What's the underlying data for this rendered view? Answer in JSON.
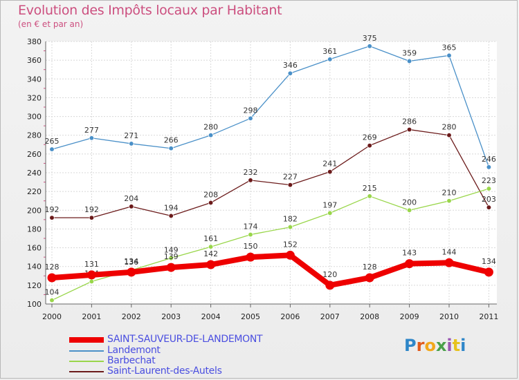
{
  "title": "Evolution des Impôts locaux par Habitant",
  "subtitle": "(en € et par an)",
  "brand": {
    "text": "Proxiti",
    "letter_colors": [
      "#2e86c8",
      "#e05a1c",
      "#f2a71b",
      "#4aa04a",
      "#9b57b2",
      "#e7c21e",
      "#2e86c8"
    ]
  },
  "chart_data": {
    "type": "line",
    "title": "Evolution des Impôts locaux par Habitant",
    "subtitle": "(en € et par an)",
    "x": [
      "2000",
      "2001",
      "2002",
      "2003",
      "2004",
      "2005",
      "2006",
      "2007",
      "2008",
      "2009",
      "2010",
      "2011"
    ],
    "ylim": [
      100,
      380
    ],
    "yticks": [
      "100",
      "120",
      "140",
      "160",
      "180",
      "200",
      "220",
      "240",
      "260",
      "280",
      "300",
      "320",
      "340",
      "360",
      "380"
    ],
    "grid": true,
    "legend_position": "bottom-left",
    "series": [
      {
        "name": "Landemont",
        "color": "#4a90c8",
        "values": [
          265,
          277,
          271,
          266,
          280,
          298,
          346,
          361,
          375,
          359,
          365,
          246
        ],
        "labels": [
          "265",
          "277",
          "271",
          "266",
          "280",
          "298",
          "346",
          "361",
          "375",
          "359",
          "365",
          "246"
        ]
      },
      {
        "name": "Saint-Laurent-des-Autels",
        "color": "#6b1a1a",
        "values": [
          192,
          192,
          204,
          194,
          208,
          232,
          227,
          241,
          269,
          286,
          280,
          203
        ],
        "labels": [
          "192",
          "192",
          "204",
          "194",
          "208",
          "232",
          "227",
          "241",
          "269",
          "286",
          "280",
          "203"
        ]
      },
      {
        "name": "Barbechat",
        "color": "#99d64a",
        "values": [
          104,
          124,
          136,
          149,
          161,
          174,
          182,
          197,
          215,
          200,
          210,
          223
        ],
        "labels": [
          "104",
          "124",
          "136",
          "149",
          "161",
          "174",
          "182",
          "197",
          "215",
          "200",
          "210",
          "223"
        ]
      },
      {
        "name": "SAINT-SAUVEUR-DE-LANDEMONT",
        "color": "#ee0000",
        "values": [
          128,
          131,
          134,
          139,
          142,
          150,
          152,
          120,
          128,
          143,
          144,
          134
        ],
        "labels": [
          "128",
          "131",
          "134",
          "139",
          "142",
          "150",
          "152",
          "120",
          "128",
          "143",
          "144",
          "134"
        ]
      }
    ],
    "legend": [
      {
        "name": "SAINT-SAUVEUR-DE-LANDEMONT",
        "color": "#ee0000"
      },
      {
        "name": "Landemont",
        "color": "#4a90c8"
      },
      {
        "name": "Barbechat",
        "color": "#99d64a"
      },
      {
        "name": "Saint-Laurent-des-Autels",
        "color": "#6b1a1a"
      }
    ]
  }
}
